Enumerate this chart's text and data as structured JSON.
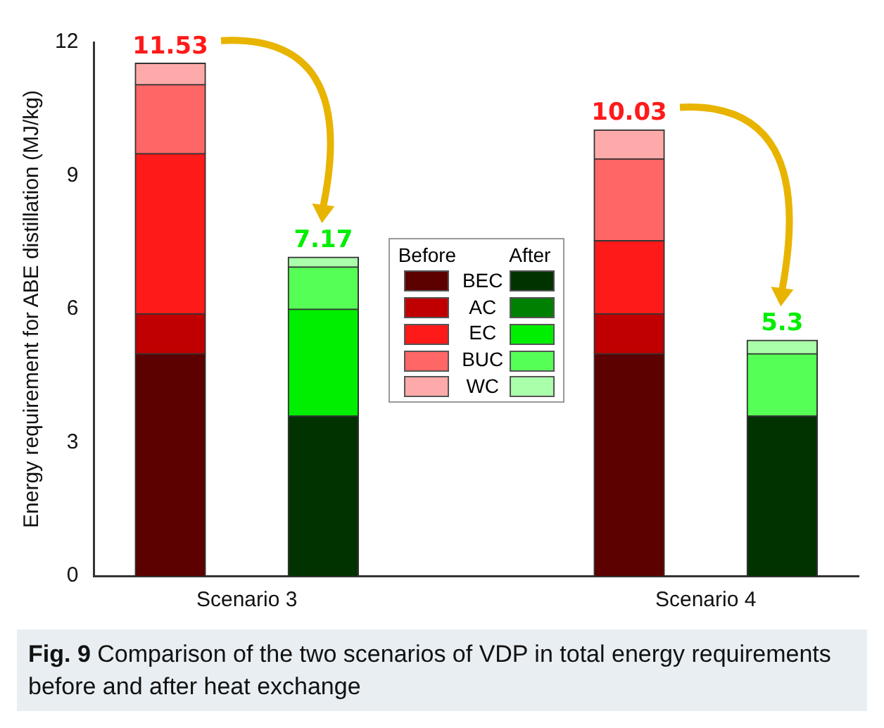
{
  "chart_data": {
    "type": "bar",
    "stacked": true,
    "ylabel": "Energy requirement for ABE distillation (MJ/kg)",
    "categories": [
      "Scenario 3",
      null,
      null,
      "Scenario 4",
      null
    ],
    "series": [
      {
        "name": "BEC",
        "colors": [
          "#5c0000",
          "#003300",
          "#5c0000",
          "#5c0000",
          "#003300"
        ],
        "values": [
          5.0,
          3.6,
          null,
          5.0,
          3.6
        ]
      },
      {
        "name": "AC",
        "colors": [
          "#c00000",
          "#008000",
          "#c00000",
          "#c00000",
          "#008000"
        ],
        "values": [
          0.9,
          0,
          null,
          0.9,
          0
        ]
      },
      {
        "name": "EC",
        "colors": [
          "#ff1a1a",
          "#00ee00",
          "#ff1a1a",
          "#ff1a1a",
          "#00ee00"
        ],
        "values": [
          3.6,
          2.4,
          null,
          1.64,
          0
        ]
      },
      {
        "name": "BUC",
        "colors": [
          "#ff6666",
          "#55ff55",
          "#ff6666",
          "#ff6666",
          "#55ff55"
        ],
        "values": [
          1.55,
          0.95,
          null,
          1.84,
          1.4
        ]
      },
      {
        "name": "WC",
        "colors": [
          "#ffaaaa",
          "#aaffaa",
          "#ffaaaa",
          "#ffaaaa",
          "#aaffaa"
        ],
        "values": [
          0.48,
          0.22,
          null,
          0.65,
          0.3
        ]
      }
    ],
    "totals": [
      "11.53",
      "7.17",
      null,
      "10.03",
      "5.3"
    ],
    "ylim": [
      0,
      12
    ],
    "yticks": [
      0,
      3,
      6,
      9,
      12
    ],
    "grid": false,
    "legend": "center",
    "annotations": [
      "Before",
      "After",
      "Fig. 9 Comparison of the two scenarios of VDP in total energy requirements before and after heat exchange"
    ]
  }
}
